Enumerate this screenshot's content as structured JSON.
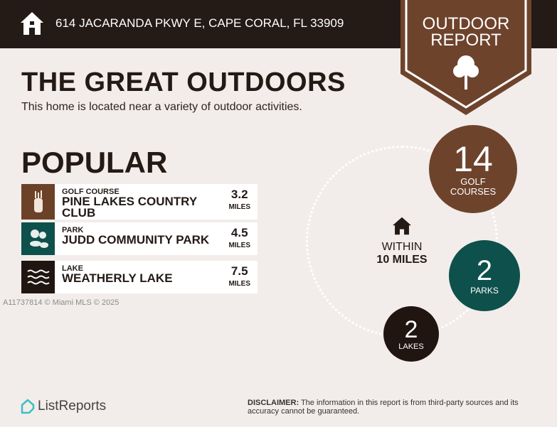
{
  "header": {
    "address": "614 JACARANDA PKWY E, CAPE CORAL, FL 33909",
    "icon": "home-icon"
  },
  "badge": {
    "line1": "OUTDOOR",
    "line2": "REPORT",
    "icon": "tree-icon"
  },
  "title": "THE GREAT OUTDOORS",
  "subtitle": "This home is located near a variety of outdoor activities.",
  "popular": {
    "heading": "POPULAR",
    "items": [
      {
        "category": "GOLF COURSE",
        "name": "PINE LAKES COUNTRY CLUB",
        "distance": "3.2",
        "unit": "MILES",
        "icon": "golf-bag-icon",
        "color": "#6b4128"
      },
      {
        "category": "PARK",
        "name": "JUDD COMMUNITY PARK",
        "distance": "4.5",
        "unit": "MILES",
        "icon": "trees-icon",
        "color": "#0e504b"
      },
      {
        "category": "LAKE",
        "name": "WEATHERLY LAKE",
        "distance": "7.5",
        "unit": "MILES",
        "icon": "waves-icon",
        "color": "#201510"
      }
    ]
  },
  "watermark": "A11737814 © Miami MLS © 2025",
  "summary": {
    "within_line1": "WITHIN",
    "within_line2": "10 MILES",
    "golf": {
      "count": "14",
      "label1": "GOLF",
      "label2": "COURSES"
    },
    "parks": {
      "count": "2",
      "label": "PARKS"
    },
    "lakes": {
      "count": "2",
      "label": "LAKES"
    }
  },
  "footer": {
    "logo": "ListReports",
    "disclaimer_label": "DISCLAIMER:",
    "disclaimer": " The information in this report is from third-party sources and its accuracy cannot be guaranteed."
  }
}
